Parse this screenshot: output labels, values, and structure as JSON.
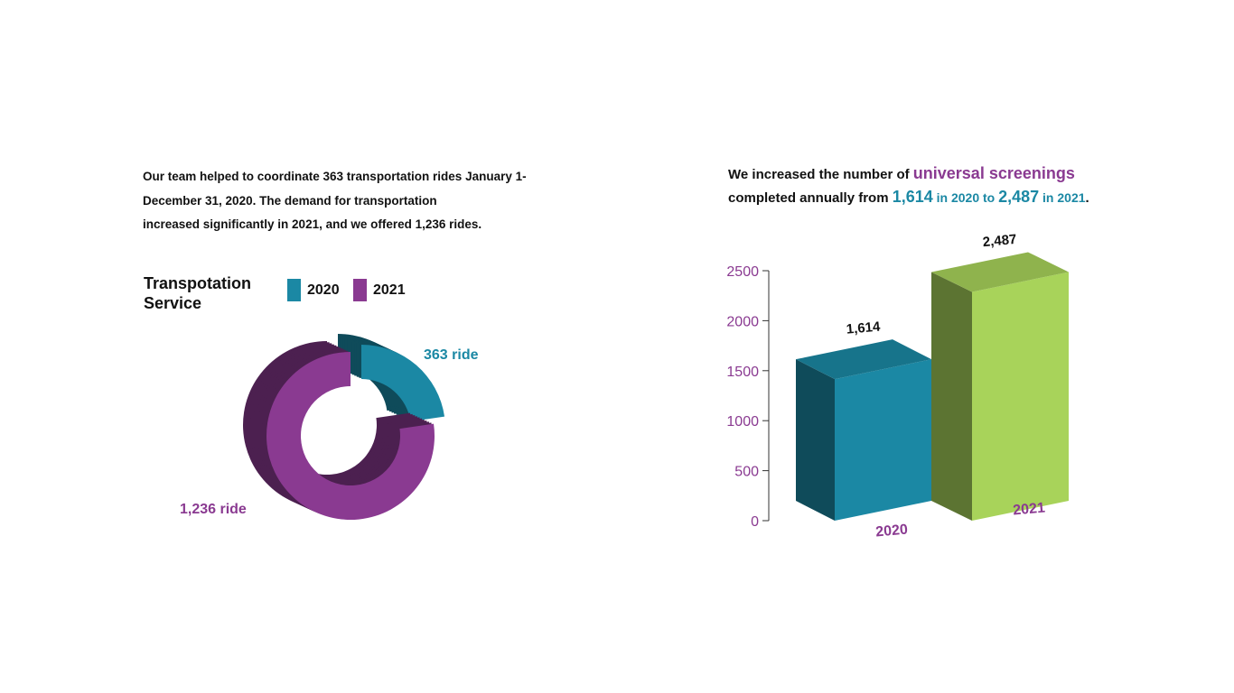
{
  "colors": {
    "teal": "#1b88a4",
    "purple": "#8a3a91",
    "green": "#a8d35a",
    "text": "#111111"
  },
  "left": {
    "paragraph": [
      "Our team helped to coordinate 363 transportation rides January 1-",
      "December 31, 2020. The demand for transportation",
      "increased significantly in 2021, and we offered 1,236 rides."
    ],
    "legend_title": [
      "Transpotation",
      "Service"
    ]
  },
  "right": {
    "headline": {
      "line1_prefix": "We increased the number of ",
      "line1_highlight": "universal screenings",
      "line2_prefix": "completed annually from ",
      "v1": "1,614",
      "in1": " in 2020 to ",
      "v2": "2,487",
      "in2": " in 2021",
      "end": "."
    }
  },
  "chart_data": [
    {
      "type": "pie",
      "title": "Transpotation Service",
      "legend": [
        "2020",
        "2021"
      ],
      "legend_placement": "top-right",
      "series": [
        {
          "name": "2020",
          "value": 363,
          "label": "363 ride",
          "color": "#1b88a4"
        },
        {
          "name": "2021",
          "value": 1236,
          "label": "1,236 ride",
          "color": "#8a3a91"
        }
      ]
    },
    {
      "type": "bar",
      "categories": [
        "2020",
        "2021"
      ],
      "values": [
        1614,
        2487
      ],
      "value_labels": [
        "1,614",
        "2,487"
      ],
      "colors": [
        "#1b88a4",
        "#a8d35a"
      ],
      "yticks": [
        0,
        500,
        1000,
        1500,
        2000,
        2500
      ],
      "ylim": [
        0,
        2500
      ],
      "grid": false
    }
  ]
}
